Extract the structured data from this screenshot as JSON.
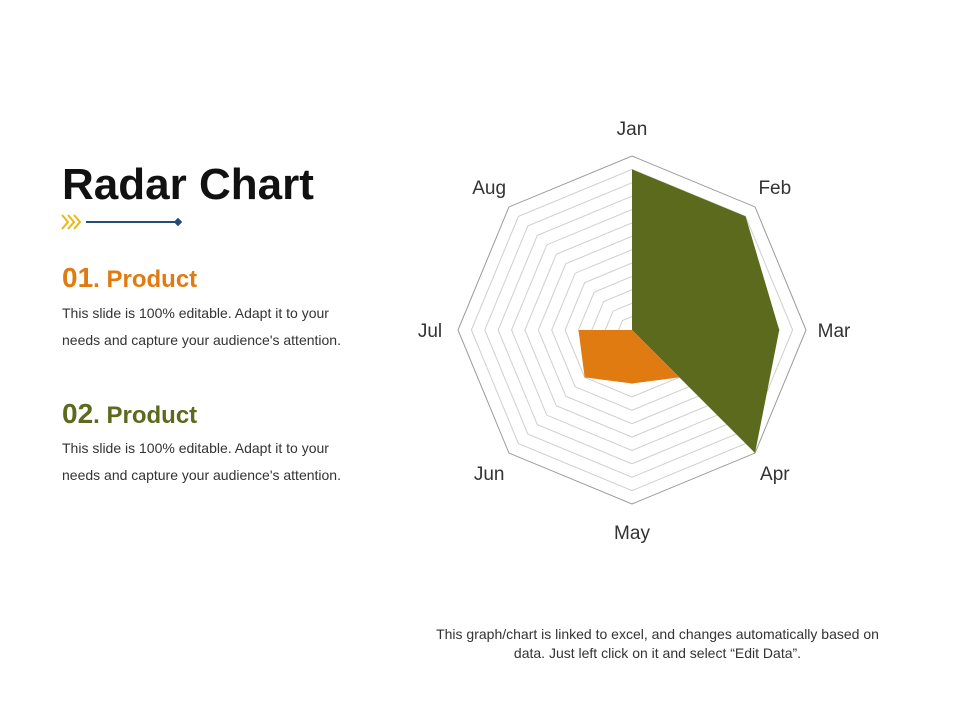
{
  "slide": {
    "title": "Radar Chart",
    "products": [
      {
        "number": "01",
        "name": ". Product",
        "description": "This slide is 100% editable. Adapt it to your needs and capture your audience's attention."
      },
      {
        "number": "02",
        "name": ". Product",
        "description": "This slide is 100% editable. Adapt it to your needs and capture your audience's attention."
      }
    ],
    "footnote": "This graph/chart is linked to excel, and changes automatically based on data. Just left click on it and select “Edit Data”."
  },
  "colors": {
    "accent_orange": "#e07b11",
    "accent_green": "#5b6a1c",
    "deco_chevron": "#e8b818",
    "deco_line": "#1f4e79"
  },
  "chart_data": {
    "type": "radar",
    "categories": [
      "Jan",
      "Feb",
      "Mar",
      "Apr",
      "May",
      "Jun",
      "Jul",
      "Aug"
    ],
    "grid_levels": 13,
    "max": 13,
    "series": [
      {
        "values": [
          12,
          12,
          11,
          13,
          0,
          0,
          0,
          0
        ],
        "color": "#5b6a1c"
      },
      {
        "values": [
          10,
          0,
          0,
          5,
          4,
          5,
          4,
          0
        ],
        "color": "#e07b11"
      }
    ]
  }
}
